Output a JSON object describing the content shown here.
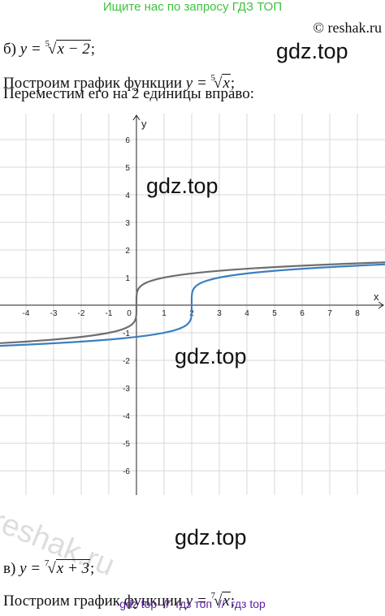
{
  "header": {
    "banner": "Ищите нас по запросу ГДЗ ТОП",
    "copyright": "© reshak.ru"
  },
  "part_b": {
    "label": "б)",
    "lhs": "y =",
    "index": "5",
    "radicand": "x − 2",
    "suffix": ";"
  },
  "step_1": {
    "text": "Построим график функции",
    "lhs": "y =",
    "index": "5",
    "radicand": "x",
    "suffix": ";"
  },
  "step_2": {
    "text": "Переместим его на 2 единицы вправо:"
  },
  "chart_data": {
    "type": "line",
    "xlabel": "x",
    "ylabel": "y",
    "origin_label": "0",
    "xlim": [
      -4.94,
      9
    ],
    "ylim": [
      -6.88,
      6.94
    ],
    "xticks": [
      -4,
      -3,
      -2,
      -1,
      1,
      2,
      3,
      4,
      5,
      6,
      7,
      8
    ],
    "yticks": [
      -6,
      -5,
      -4,
      -3,
      -2,
      -1,
      1,
      2,
      3,
      4,
      5,
      6
    ],
    "grid": true,
    "curves": [
      {
        "root": 5,
        "shift": 0,
        "color": "#6e6e6e"
      },
      {
        "root": 5,
        "shift": 2,
        "color": "#3d7fc1"
      }
    ]
  },
  "part_c": {
    "label": "в)",
    "lhs": "y =",
    "index": "7",
    "radicand": "x + 3",
    "suffix": ";"
  },
  "step_3": {
    "text": "Построим график функции",
    "lhs": "y =",
    "index": "7",
    "radicand": "x",
    "suffix": ";"
  },
  "watermarks": {
    "gdz_1": "gdz.top",
    "gdz_2": "gdz.top",
    "gdz_3": "gdz.top",
    "gdz_4": "gdz.top",
    "reshak": "reshak.ru"
  },
  "footer": {
    "text": "gdz top  //  гдз топ  //  гдз top"
  }
}
